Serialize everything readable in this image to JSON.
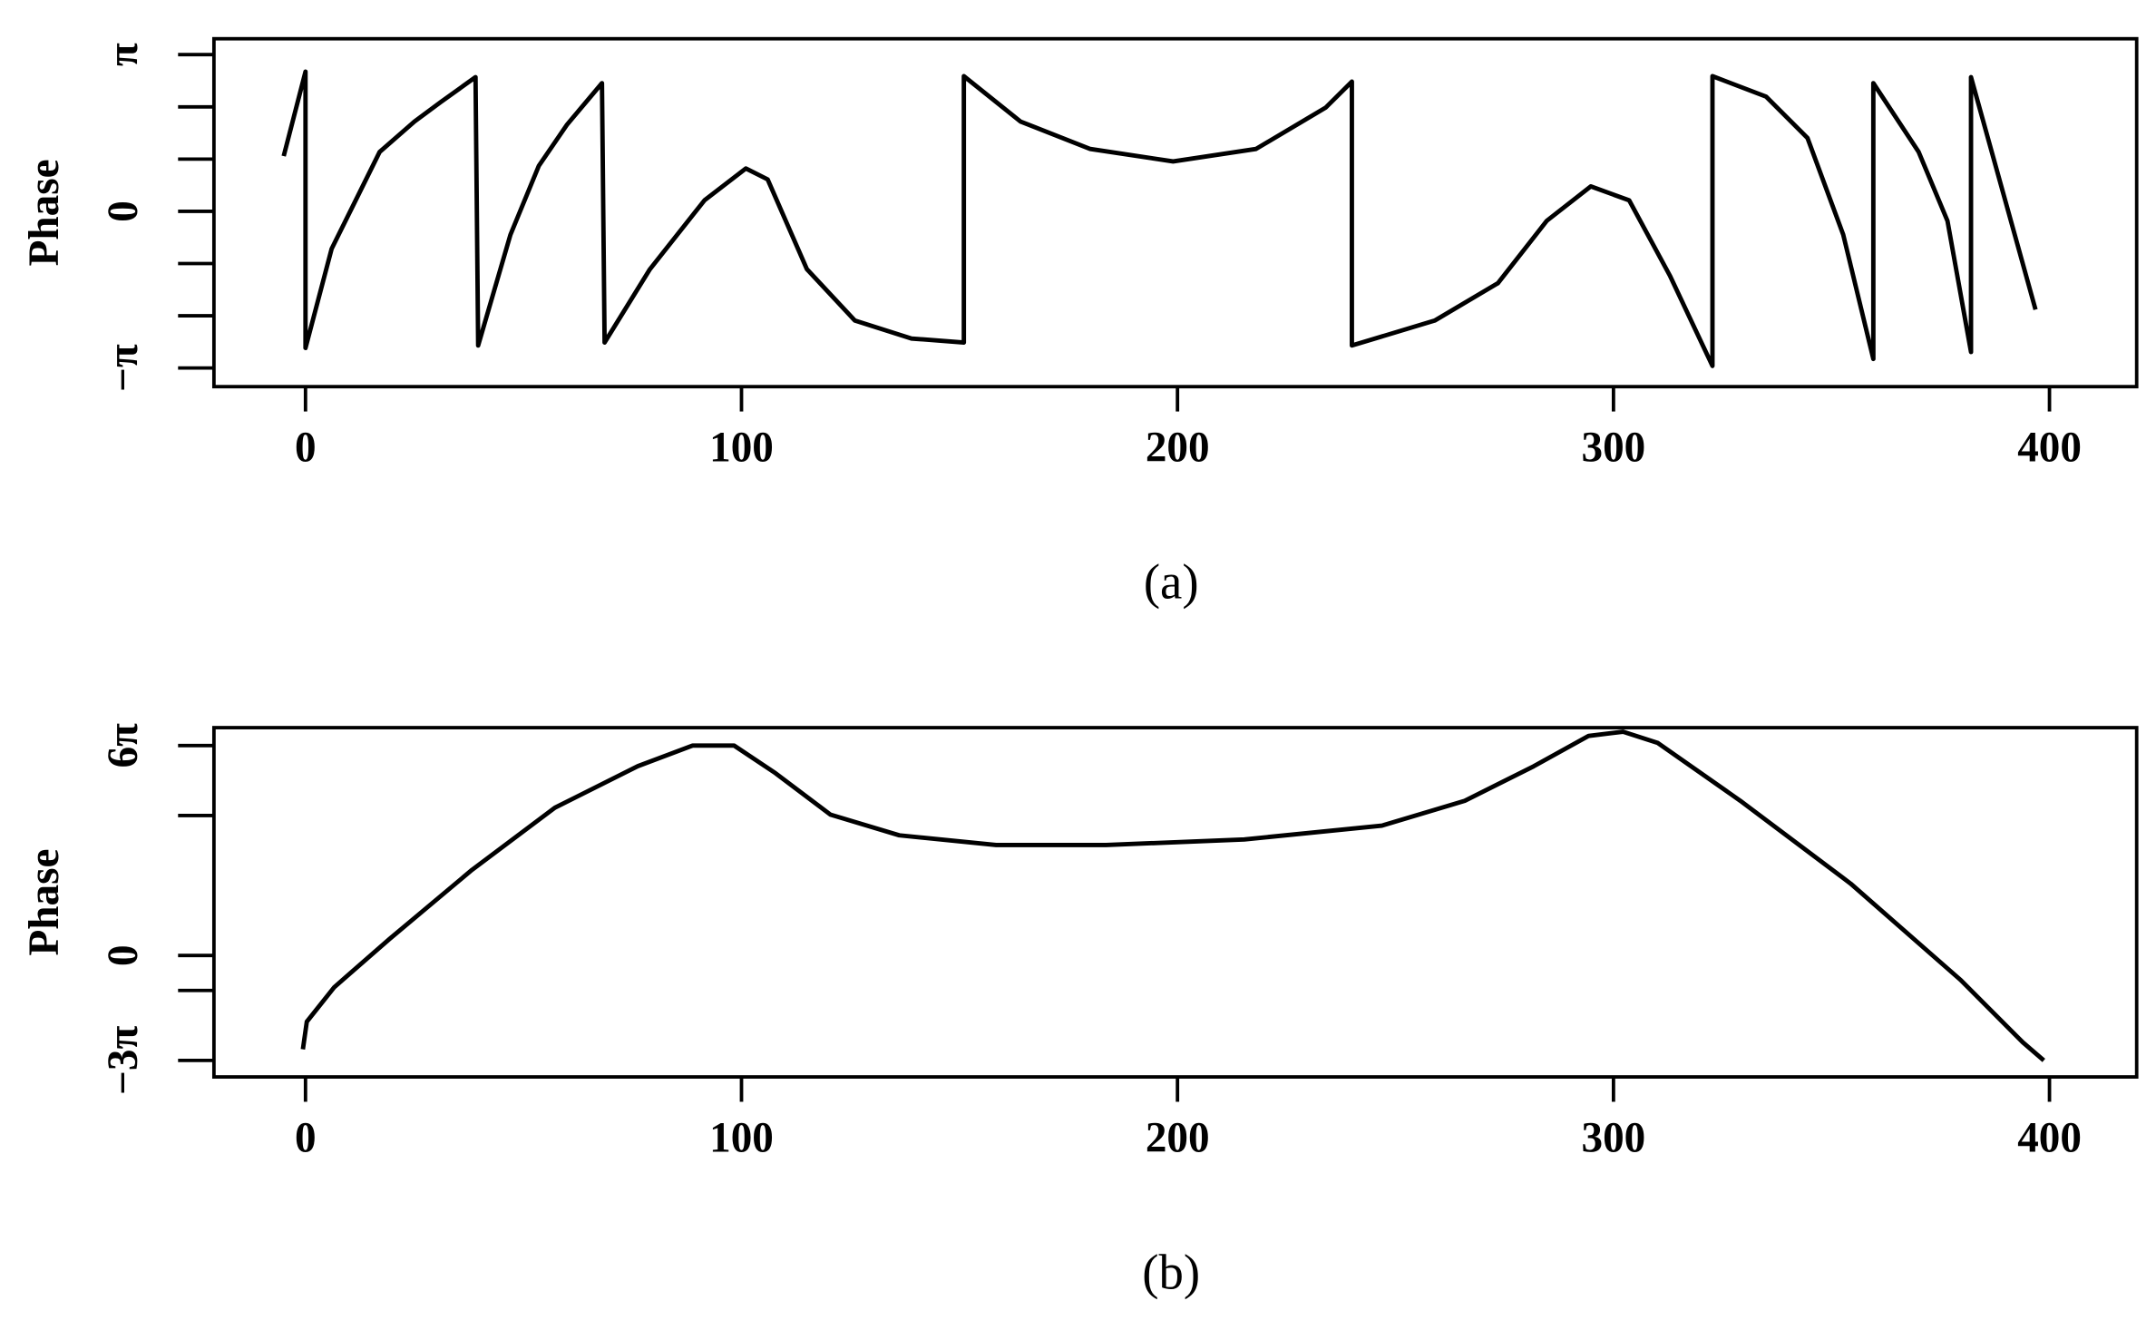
{
  "chart_data": [
    {
      "type": "line",
      "y_label": "Phase",
      "caption": "(a)",
      "x": [
        -5,
        0,
        0,
        6,
        12.3,
        17,
        25,
        31,
        39,
        39.6,
        47,
        53.5,
        60,
        68,
        68.6,
        79,
        91.5,
        101,
        106,
        115,
        126,
        139,
        151,
        151,
        164,
        180,
        199,
        218,
        234,
        240,
        240,
        259,
        273.5,
        284.7,
        294.8,
        303.6,
        313,
        322.7,
        322.7,
        335,
        344.5,
        352.7,
        359.6,
        359.6,
        370,
        376.6,
        382,
        382,
        396.8
      ],
      "values": [
        1.107,
        2.8,
        -2.74,
        -0.75,
        0.36,
        1.19,
        1.8,
        2.19,
        2.69,
        -2.69,
        -0.47,
        0.91,
        1.74,
        2.57,
        -2.63,
        -1.16,
        0.22,
        0.86,
        0.64,
        -1.16,
        -2.19,
        -2.55,
        -2.63,
        2.71,
        1.8,
        1.25,
        1.0,
        1.25,
        2.08,
        2.6,
        -2.69,
        -2.19,
        -1.44,
        -0.19,
        0.5,
        0.22,
        -1.3,
        -3.1,
        2.71,
        2.3,
        1.47,
        -0.47,
        -2.96,
        2.57,
        1.19,
        -0.19,
        -2.82,
        2.69,
        -1.97
      ],
      "color": "#000000",
      "xlim": [
        -21,
        420
      ],
      "xticks": [
        0,
        100,
        200,
        300,
        400
      ],
      "ylim": [
        -3.515,
        3.46
      ],
      "yticks": [
        {
          "value": -3.14159,
          "label": "−π"
        },
        {
          "value": 0,
          "label": "0"
        },
        {
          "value": 3.14159,
          "label": "π"
        }
      ],
      "yminor_ticks": [
        -2.0944,
        -1.0472,
        1.0472,
        2.0944
      ]
    },
    {
      "type": "line",
      "y_label": "Phase",
      "caption": "(b)",
      "x": [
        -0.6,
        0.3,
        6.6,
        19.3,
        38.2,
        57.2,
        76.2,
        88.8,
        98.3,
        107.8,
        120.4,
        136.2,
        158.4,
        183.6,
        215.3,
        246.9,
        265.9,
        281.7,
        294.3,
        302.2,
        310.1,
        329.1,
        354.4,
        379.7,
        393.9,
        398.7
      ],
      "values": [
        -8.43,
        -5.95,
        -2.85,
        1.49,
        7.69,
        13.27,
        17.0,
        18.85,
        18.85,
        16.37,
        12.65,
        10.79,
        9.92,
        9.92,
        10.42,
        11.66,
        13.89,
        16.99,
        19.72,
        20.09,
        19.1,
        13.89,
        6.45,
        -2.23,
        -7.81,
        -9.43
      ],
      "color": "#000000",
      "xlim": [
        -21,
        420
      ],
      "xticks": [
        0,
        100,
        200,
        300,
        400
      ],
      "ylim": [
        -10.91,
        20.46
      ],
      "yticks": [
        {
          "value": -9.42478,
          "label": "−3π"
        },
        {
          "value": 0,
          "label": "0"
        },
        {
          "value": 18.84956,
          "label": "6π"
        }
      ],
      "yminor_ticks": [
        -3.14159,
        12.56637
      ]
    }
  ]
}
